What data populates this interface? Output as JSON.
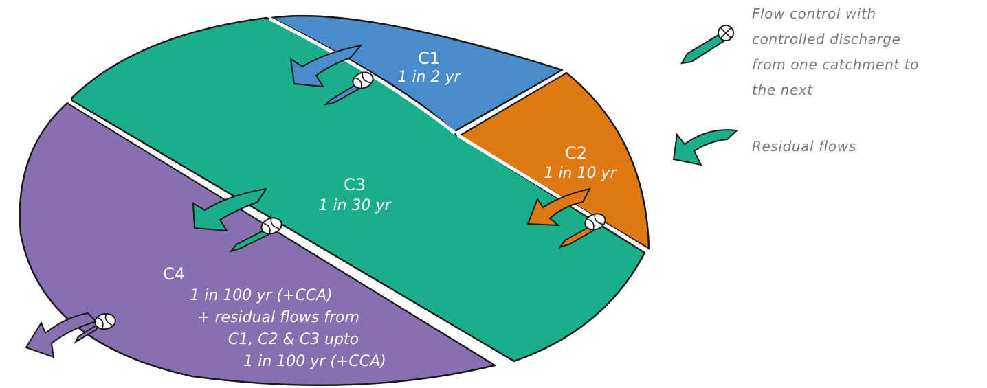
{
  "catchments": [
    {
      "id": "C1",
      "label": "C1",
      "sub": [
        "1 in 2 yr"
      ],
      "color": "#4a8bc9"
    },
    {
      "id": "C2",
      "label": "C2",
      "sub": [
        "1 in 10 yr"
      ],
      "color": "#e07813"
    },
    {
      "id": "C3",
      "label": "C3",
      "sub": [
        "1 in 30 yr"
      ],
      "color": "#1aae8a"
    },
    {
      "id": "C4",
      "label": "C4",
      "sub": [
        "1 in 100 yr (+CCA)",
        "+ residual flows from",
        "C1, C2 & C3 upto",
        "1 in 100 yr (+CCA)"
      ],
      "color": "#8770b0"
    }
  ],
  "legend": {
    "flow_control": {
      "text": "Flow control with controlled discharge from one catchment to the next",
      "lines": [
        "Flow control with",
        "controlled discharge",
        "from one catchment to",
        "the next"
      ],
      "icon": "flow-control-icon",
      "color": "#1aae8a"
    },
    "residual": {
      "text": "Residual flows",
      "lines": [
        "Residual flows"
      ],
      "icon": "residual-flow-arrow-icon",
      "color": "#1aae8a"
    }
  },
  "outline_color": "#1a1a1a",
  "legend_text_color": "#7a7a7a"
}
